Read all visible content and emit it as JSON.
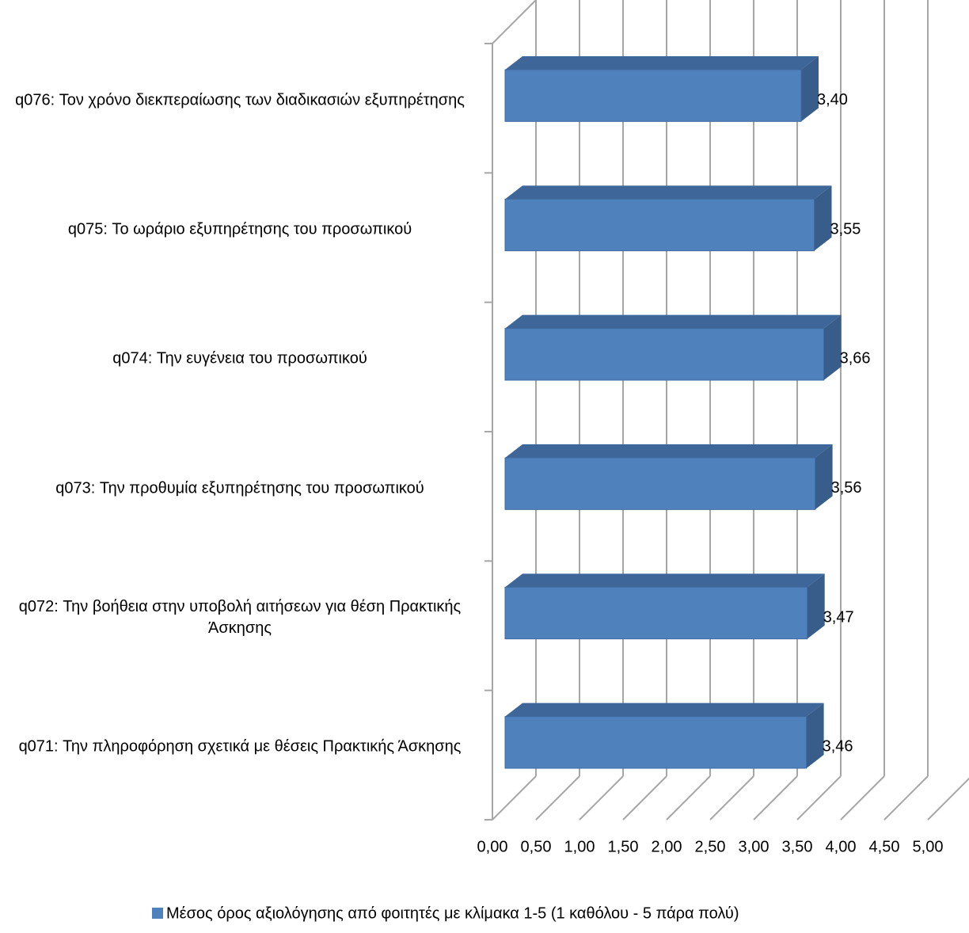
{
  "chart_data": {
    "type": "bar3d_horizontal",
    "categories": [
      "q076: Τον χρόνο διεκπεραίωσης των διαδικασιών εξυπηρέτησης",
      "q075: Το ωράριο εξυπηρέτησης του προσωπικού",
      "q074: Την ευγένεια του προσωπικού",
      "q073: Την προθυμία εξυπηρέτησης του προσωπικού",
      "q072: Την βοήθεια στην υποβολή αιτήσεων για θέση Πρακτικής Άσκησης",
      "q071: Την πληροφόρηση σχετικά με θέσεις Πρακτικής Άσκησης"
    ],
    "series": [
      {
        "name": "Μέσος όρος αξιολόγησης από φοιτητές με κλίμακα 1-5 (1 καθόλου - 5 πάρα πολύ)",
        "color": "#4f81bd",
        "values": [
          3.4,
          3.55,
          3.66,
          3.56,
          3.47,
          3.46
        ],
        "value_labels": [
          "3,40",
          "3,55",
          "3,66",
          "3,56",
          "3,47",
          "3,46"
        ]
      }
    ],
    "xlim": [
      0,
      5
    ],
    "xticks": [
      {
        "value": 0,
        "label": "0,00"
      },
      {
        "value": 0.5,
        "label": "0,50"
      },
      {
        "value": 1,
        "label": "1,00"
      },
      {
        "value": 1.5,
        "label": "1,50"
      },
      {
        "value": 2,
        "label": "2,00"
      },
      {
        "value": 2.5,
        "label": "2,50"
      },
      {
        "value": 3,
        "label": "3,00"
      },
      {
        "value": 3.5,
        "label": "3,50"
      },
      {
        "value": 4,
        "label": "4,00"
      },
      {
        "value": 4.5,
        "label": "4,50"
      },
      {
        "value": 5,
        "label": "5,00"
      }
    ],
    "grid": true,
    "legend": "bottom"
  }
}
